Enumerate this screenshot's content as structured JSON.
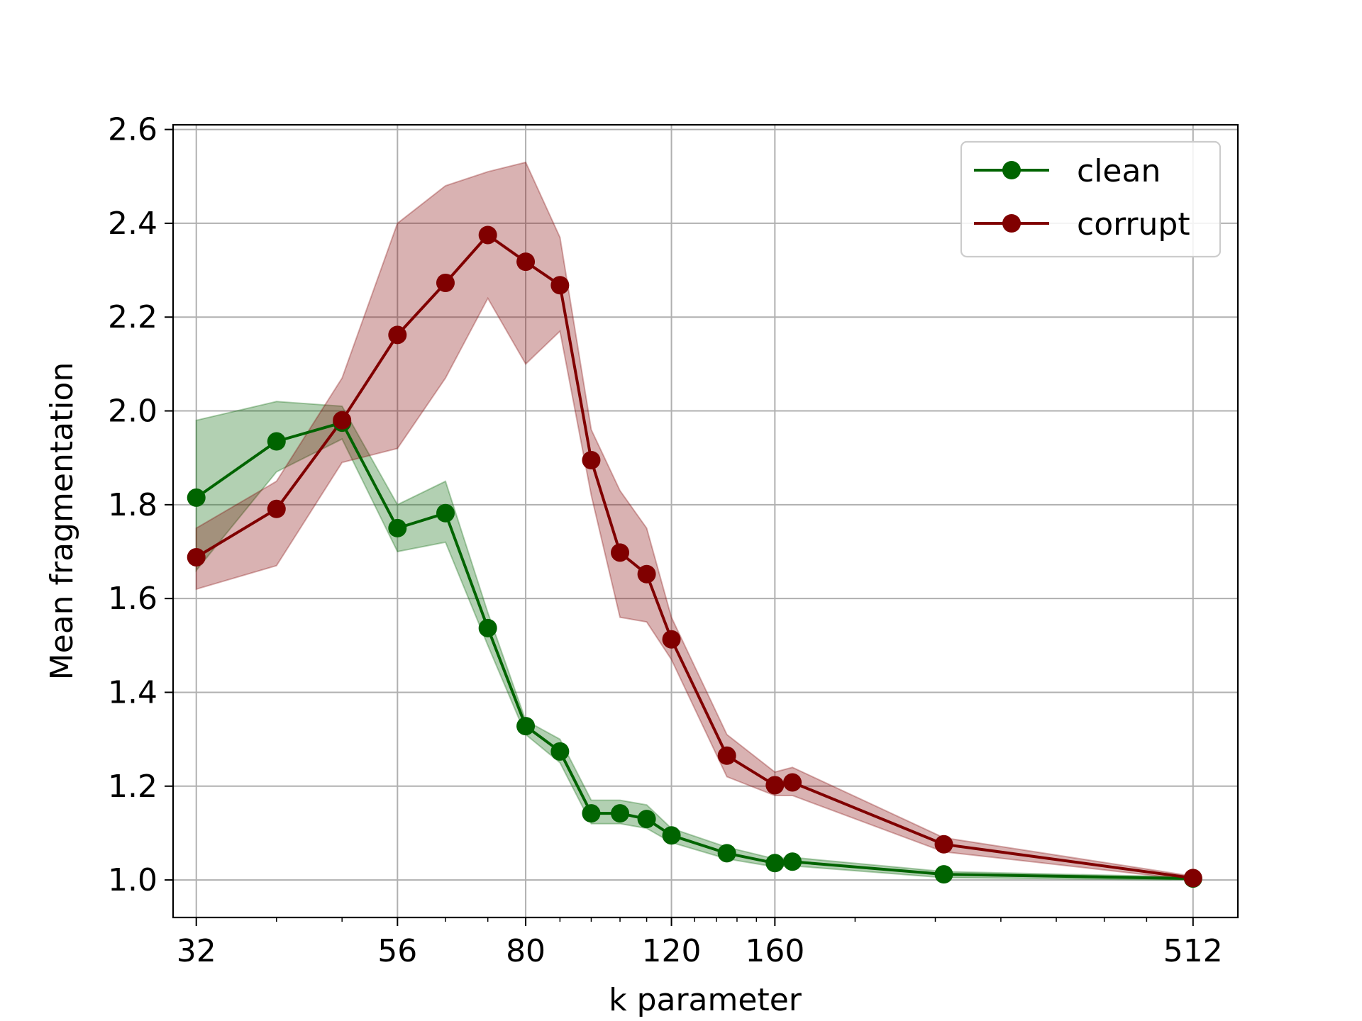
{
  "chart_data": {
    "type": "line",
    "xlabel": "k parameter",
    "ylabel": "Mean fragmentation",
    "x_scale": "log",
    "xlim": [
      30,
      580
    ],
    "ylim": [
      0.92,
      2.61
    ],
    "grid": true,
    "legend_position": "upper right",
    "x_ticks": [
      32,
      56,
      80,
      120,
      160,
      512
    ],
    "x_tick_labels": [
      "32",
      "56",
      "80",
      "120",
      "160",
      "512"
    ],
    "y_ticks": [
      1.0,
      1.2,
      1.4,
      1.6,
      1.8,
      2.0,
      2.2,
      2.4,
      2.6
    ],
    "y_tick_labels": [
      "1.0",
      "1.2",
      "1.4",
      "1.6",
      "1.8",
      "2.0",
      "2.2",
      "2.4",
      "2.6"
    ],
    "x_minor_ticks": [
      40,
      48,
      64,
      72,
      88,
      96,
      104,
      112,
      128,
      136,
      144,
      152,
      200,
      250,
      300,
      350,
      400,
      450
    ],
    "x": [
      32,
      40,
      48,
      56,
      64,
      72,
      80,
      88,
      96,
      104,
      112,
      120,
      140,
      160,
      168,
      256,
      512
    ],
    "series": [
      {
        "name": "clean",
        "color": "#006400",
        "values": [
          1.815,
          1.935,
          1.975,
          1.75,
          1.782,
          1.537,
          1.328,
          1.274,
          1.142,
          1.142,
          1.13,
          1.095,
          1.057,
          1.036,
          1.039,
          1.012,
          1.003
        ],
        "lower": [
          1.66,
          1.87,
          1.94,
          1.7,
          1.72,
          1.5,
          1.31,
          1.25,
          1.12,
          1.12,
          1.11,
          1.08,
          1.045,
          1.028,
          1.03,
          1.005,
          1.0
        ],
        "upper": [
          1.98,
          2.02,
          2.01,
          1.8,
          1.85,
          1.57,
          1.34,
          1.3,
          1.17,
          1.17,
          1.16,
          1.11,
          1.07,
          1.045,
          1.048,
          1.018,
          1.006
        ]
      },
      {
        "name": "corrupt",
        "color": "#800000",
        "values": [
          1.688,
          1.791,
          1.98,
          2.162,
          2.273,
          2.375,
          2.318,
          2.268,
          1.895,
          1.698,
          1.652,
          1.513,
          1.265,
          1.202,
          1.208,
          1.076,
          1.004
        ],
        "lower": [
          1.62,
          1.67,
          1.89,
          1.92,
          2.07,
          2.24,
          2.1,
          2.17,
          1.82,
          1.56,
          1.55,
          1.47,
          1.22,
          1.18,
          1.18,
          1.06,
          1.0
        ],
        "upper": [
          1.75,
          1.85,
          2.07,
          2.4,
          2.48,
          2.51,
          2.53,
          2.37,
          1.96,
          1.83,
          1.75,
          1.56,
          1.31,
          1.23,
          1.24,
          1.09,
          1.008
        ]
      }
    ]
  }
}
